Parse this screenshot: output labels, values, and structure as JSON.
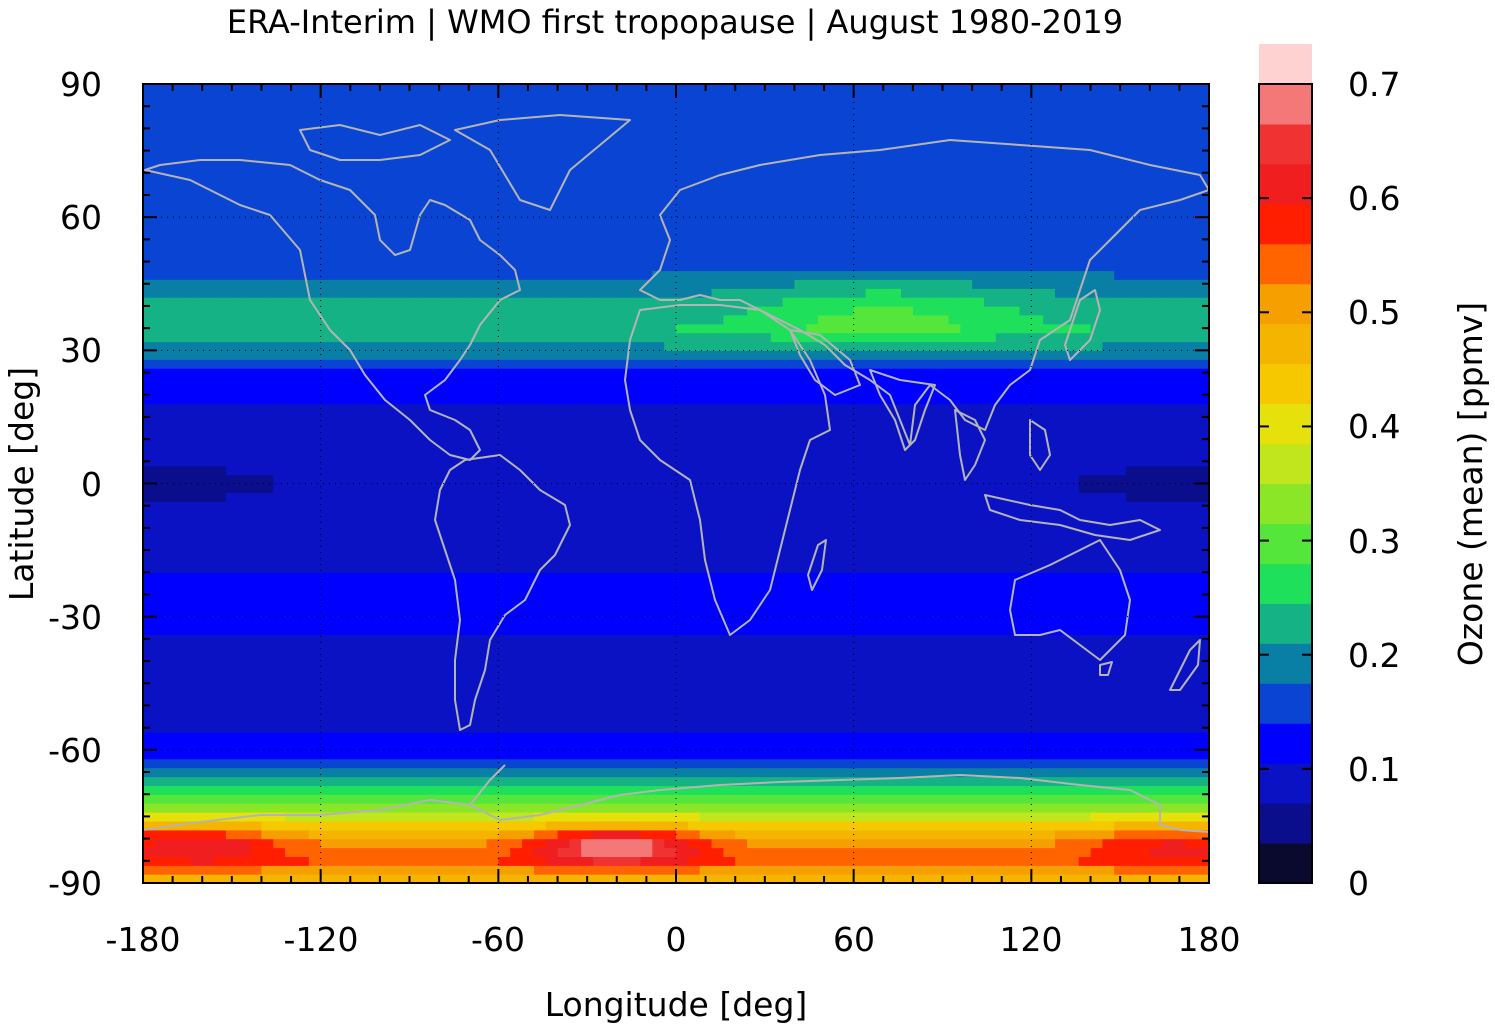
{
  "chart_data": {
    "type": "heatmap",
    "title": "ERA-Interim | WMO first tropopause | August 1980-2019",
    "xlabel": "Longitude [deg]",
    "ylabel": "Latitude [deg]",
    "colorbar_label": "Ozone (mean) [ppmv]",
    "xlim": [
      -180,
      180
    ],
    "ylim": [
      -90,
      90
    ],
    "x_ticks": [
      "-180",
      "-120",
      "-60",
      "0",
      "60",
      "120",
      "180"
    ],
    "y_ticks": [
      "90",
      "60",
      "30",
      "0",
      "-30",
      "-60",
      "-90"
    ],
    "colorbar_ticks": [
      "0.7",
      "0.6",
      "0.5",
      "0.4",
      "0.3",
      "0.2",
      "0.1",
      "0"
    ],
    "clim": [
      0,
      0.7
    ],
    "grid": true,
    "colorbar": {
      "step": 0.035,
      "colors": [
        "#0a0a2e",
        "#0b0e8c",
        "#0a12c4",
        "#0000ff",
        "#0a44d2",
        "#0a7fa5",
        "#14b285",
        "#1ee05a",
        "#55e63c",
        "#8ce628",
        "#c2e61e",
        "#e6e10a",
        "#f5c800",
        "#f5b400",
        "#f5a000",
        "#ff6400",
        "#ff1e00",
        "#f01e1e",
        "#f03232",
        "#f57878",
        "#ffd2d2"
      ]
    },
    "zonal_mean_ozone_ppmv": {
      "lat": [
        -90,
        -85,
        -80,
        -75,
        -70,
        -65,
        -60,
        -55,
        -50,
        -45,
        -40,
        -35,
        -30,
        -25,
        -20,
        -15,
        -10,
        -5,
        0,
        5,
        10,
        15,
        20,
        25,
        30,
        35,
        40,
        45,
        50,
        55,
        60,
        65,
        70,
        75,
        80,
        85,
        90
      ],
      "value": [
        0.45,
        0.55,
        0.5,
        0.38,
        0.27,
        0.2,
        0.12,
        0.1,
        0.1,
        0.1,
        0.1,
        0.1,
        0.13,
        0.13,
        0.1,
        0.1,
        0.1,
        0.09,
        0.08,
        0.09,
        0.1,
        0.1,
        0.11,
        0.13,
        0.2,
        0.24,
        0.22,
        0.19,
        0.15,
        0.14,
        0.14,
        0.14,
        0.14,
        0.14,
        0.14,
        0.14,
        0.14
      ]
    },
    "maxima": [
      {
        "lon": -20,
        "lat": -82,
        "value": 0.7
      },
      {
        "lon": -160,
        "lat": -82,
        "value": 0.63
      },
      {
        "lon": 165,
        "lat": -82,
        "value": 0.6
      }
    ],
    "overlay": "coastlines"
  }
}
